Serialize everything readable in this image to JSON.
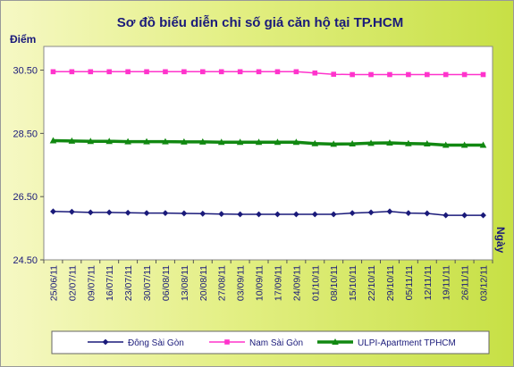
{
  "chart_data": {
    "type": "line",
    "title": "Sơ đồ biểu diễn chỉ số giá căn hộ tại TP.HCM",
    "ylabel": "Điểm",
    "xlabel": "Ngày",
    "ylim": [
      24.5,
      31.25
    ],
    "yticks": [
      "24.50",
      "26.50",
      "28.50",
      "30.50"
    ],
    "grid": false,
    "legend_position": "bottom",
    "categories": [
      "25/06/11",
      "02/07/11",
      "09/07/11",
      "16/07/11",
      "23/07/11",
      "30/07/11",
      "06/08/11",
      "13/08/11",
      "20/08/11",
      "27/08/11",
      "03/09/11",
      "10/09/11",
      "17/09/11",
      "24/09/11",
      "01/10/11",
      "08/10/11",
      "15/10/11",
      "22/10/11",
      "29/10/11",
      "05/11/11",
      "12/11/11",
      "19/11/11",
      "26/11/11",
      "03/12/11"
    ],
    "series": [
      {
        "name": "Đông Sài Gòn",
        "color": "#1a1a7a",
        "marker": "diamond",
        "values": [
          26.03,
          26.02,
          26.0,
          26.0,
          25.99,
          25.98,
          25.98,
          25.97,
          25.96,
          25.95,
          25.94,
          25.94,
          25.94,
          25.94,
          25.94,
          25.94,
          25.98,
          26.0,
          26.03,
          25.98,
          25.97,
          25.91,
          25.91,
          25.91
        ]
      },
      {
        "name": "Nam Sài Gòn",
        "color": "#ff33cc",
        "marker": "square",
        "values": [
          30.45,
          30.45,
          30.45,
          30.45,
          30.45,
          30.45,
          30.45,
          30.45,
          30.45,
          30.45,
          30.45,
          30.45,
          30.45,
          30.45,
          30.41,
          30.37,
          30.36,
          30.36,
          30.36,
          30.36,
          30.36,
          30.36,
          30.36,
          30.36
        ]
      },
      {
        "name": "ULPI-Apartment TPHCM",
        "color": "#118811",
        "marker": "triangle",
        "values": [
          28.27,
          28.26,
          28.25,
          28.25,
          28.24,
          28.24,
          28.24,
          28.23,
          28.23,
          28.22,
          28.22,
          28.22,
          28.22,
          28.22,
          28.18,
          28.16,
          28.17,
          28.19,
          28.2,
          28.18,
          28.17,
          28.13,
          28.13,
          28.13
        ]
      }
    ]
  }
}
